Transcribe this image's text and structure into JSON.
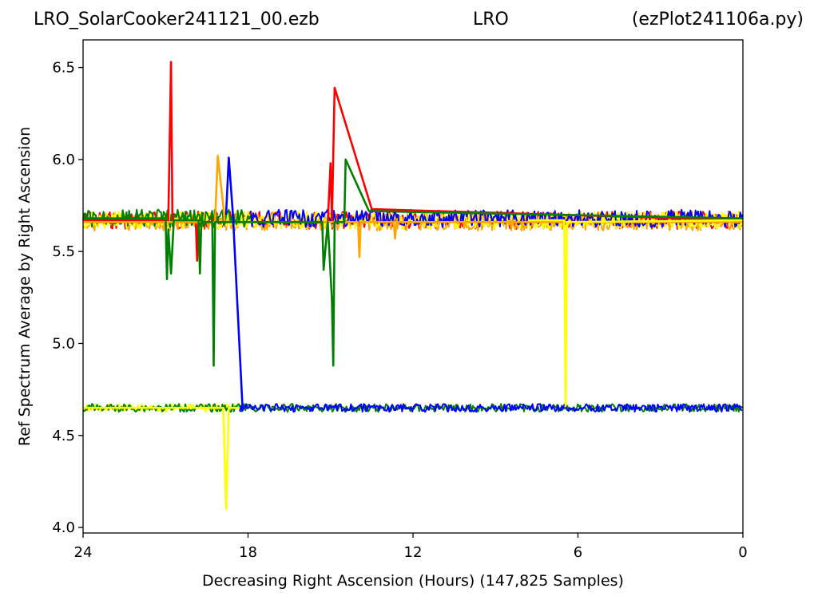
{
  "header": {
    "left": "LRO_SolarCooker241121_00.ezb",
    "middle": "LRO",
    "right": "(ezPlot241106a.py)"
  },
  "chart_data": {
    "type": "line",
    "xlabel": "Decreasing Right Ascension (Hours) (147,825 Samples)",
    "ylabel": "Ref Spectrum Average by Right Ascension",
    "xlim": [
      24,
      0
    ],
    "ylim": [
      3.97,
      6.65
    ],
    "x_ticks": [
      24,
      18,
      12,
      6,
      0
    ],
    "y_ticks": [
      4.0,
      4.5,
      5.0,
      5.5,
      6.0,
      6.5
    ],
    "y_tick_labels": [
      "4.0",
      "4.5",
      "5.0",
      "5.5",
      "6.0",
      "6.5"
    ],
    "grid": false,
    "legend": "none",
    "series": [
      {
        "color": "#ff0000",
        "bands": [
          [
            24,
            0,
            5.67
          ]
        ],
        "points": [
          [
            24,
            5.67
          ],
          [
            20.9,
            5.67
          ],
          [
            20.8,
            6.53
          ],
          [
            20.75,
            5.66
          ],
          [
            19.9,
            5.66
          ],
          [
            19.85,
            5.45
          ],
          [
            19.8,
            5.66
          ],
          [
            15.1,
            5.66
          ],
          [
            15.0,
            5.98
          ],
          [
            14.95,
            5.66
          ],
          [
            14.85,
            6.39
          ],
          [
            13.5,
            5.73
          ],
          [
            0,
            5.67
          ]
        ]
      },
      {
        "color": "#ffa500",
        "bands": [
          [
            24,
            0,
            5.66
          ]
        ],
        "points": [
          [
            24,
            5.66
          ],
          [
            19.2,
            5.66
          ],
          [
            19.1,
            6.02
          ],
          [
            18.9,
            5.75
          ],
          [
            18.85,
            5.66
          ],
          [
            14.0,
            5.66
          ],
          [
            13.95,
            5.47
          ],
          [
            13.9,
            5.66
          ],
          [
            12.7,
            5.66
          ],
          [
            12.65,
            5.57
          ],
          [
            12.6,
            5.66
          ],
          [
            0,
            5.66
          ]
        ]
      },
      {
        "color": "#ffff00",
        "bands": [
          [
            24,
            0,
            5.67
          ],
          [
            24,
            18.3,
            4.65
          ]
        ],
        "points": [
          [
            24,
            4.65
          ],
          [
            18.9,
            4.65
          ],
          [
            18.8,
            4.1
          ],
          [
            18.7,
            4.65
          ],
          [
            18.3,
            4.65
          ]
        ]
      },
      {
        "color": "#ffff00",
        "points": [
          [
            7.8,
            5.67
          ],
          [
            6.5,
            5.67
          ],
          [
            6.45,
            4.66
          ],
          [
            6.4,
            5.66
          ],
          [
            0,
            5.67
          ]
        ]
      },
      {
        "color": "#008000",
        "bands": [
          [
            24,
            17.9,
            5.68
          ],
          [
            24,
            0,
            4.65
          ]
        ],
        "points": [
          [
            24,
            5.68
          ],
          [
            21.0,
            5.68
          ],
          [
            20.95,
            5.35
          ],
          [
            20.9,
            5.62
          ],
          [
            20.8,
            5.38
          ],
          [
            20.7,
            5.67
          ],
          [
            19.8,
            5.67
          ],
          [
            19.75,
            5.38
          ],
          [
            19.7,
            5.66
          ],
          [
            19.3,
            5.66
          ],
          [
            19.25,
            4.88
          ],
          [
            19.2,
            5.66
          ],
          [
            15.3,
            5.66
          ],
          [
            15.25,
            5.4
          ],
          [
            15.1,
            5.66
          ],
          [
            14.95,
            5.24
          ],
          [
            14.9,
            4.88
          ],
          [
            14.85,
            5.66
          ],
          [
            14.5,
            5.66
          ],
          [
            14.45,
            6.0
          ],
          [
            13.6,
            5.72
          ],
          [
            0,
            5.68
          ]
        ]
      },
      {
        "color": "#0000ff",
        "bands": [
          [
            17.9,
            0,
            5.68
          ],
          [
            18.3,
            0,
            4.65
          ]
        ],
        "points": [
          [
            18.8,
            5.7
          ],
          [
            18.7,
            6.01
          ],
          [
            18.55,
            5.7
          ],
          [
            18.2,
            4.65
          ]
        ]
      }
    ]
  },
  "colors": {
    "frame": "#000000",
    "background": "#ffffff"
  }
}
